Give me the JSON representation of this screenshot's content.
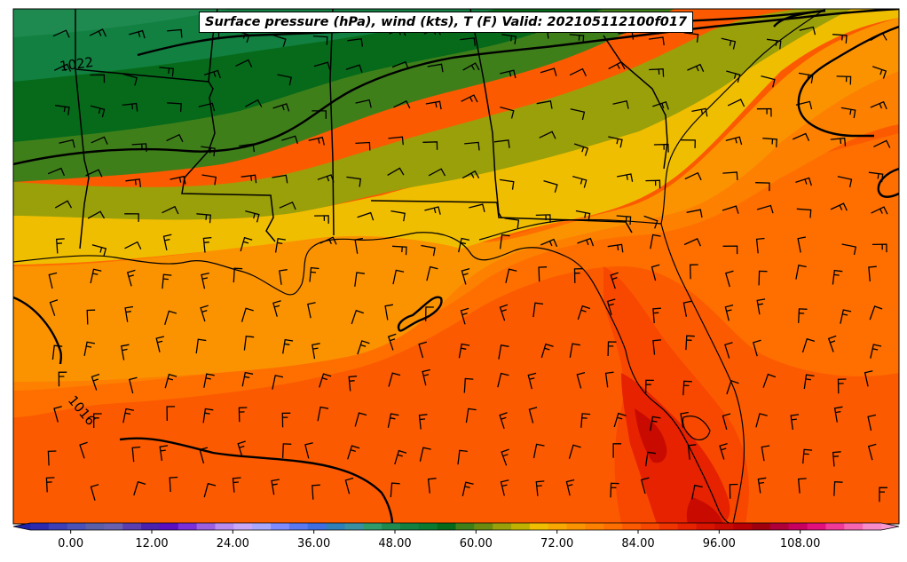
{
  "map": {
    "title": "Surface pressure (hPa), wind (kts), T (F) Valid: 202105112100f017",
    "isobar_labels": [
      "1022",
      "1016"
    ],
    "colorbar": {
      "ticks": [
        "0.00",
        "12.00",
        "24.00",
        "36.00",
        "48.00",
        "60.00",
        "72.00",
        "84.00",
        "96.00",
        "108.00"
      ],
      "min": -6,
      "max": 120,
      "step": 3,
      "colors": [
        "#2b2ab0",
        "#3b3fb8",
        "#4a52b8",
        "#5a5fa8",
        "#6a60b0",
        "#5b3fb0",
        "#4a22b0",
        "#5a10c0",
        "#7a30d8",
        "#9a60e0",
        "#b88cf0",
        "#c8a8f8",
        "#a8a8ff",
        "#7f8cff",
        "#5a78f0",
        "#3f6ee0",
        "#2f7fb8",
        "#3a8fa0",
        "#2f9a6a",
        "#1f8a50",
        "#118040",
        "#0a7a30",
        "#066a1a",
        "#3f7f1a",
        "#6b8a10",
        "#9aa00a",
        "#c0b000",
        "#f0be00",
        "#f8a800",
        "#fb9300",
        "#fd8000",
        "#fe6f00",
        "#fc5a00",
        "#f84800",
        "#f03400",
        "#e62200",
        "#d81400",
        "#c80a00",
        "#b80005",
        "#a0000e",
        "#b0003a",
        "#c80060",
        "#e2107c",
        "#f03a98",
        "#f565b0",
        "#f88cc8"
      ],
      "under_color": "#1f22a8",
      "over_color": "#fa9ad2"
    }
  }
}
